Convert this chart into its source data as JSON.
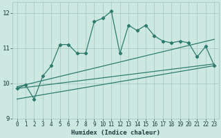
{
  "xlabel": "Humidex (Indice chaleur)",
  "bg_color": "#cce8e0",
  "grid_color": "#aaccc4",
  "line_color": "#2e7b6e",
  "xlim": [
    -0.5,
    23.5
  ],
  "ylim": [
    9.0,
    12.3
  ],
  "yticks": [
    9,
    10,
    11,
    12
  ],
  "xticks": [
    0,
    1,
    2,
    3,
    4,
    5,
    6,
    7,
    8,
    9,
    10,
    11,
    12,
    13,
    14,
    15,
    16,
    17,
    18,
    19,
    20,
    21,
    22,
    23
  ],
  "main_line_x": [
    0,
    1,
    2,
    3,
    4,
    5,
    6,
    7,
    8,
    9,
    10,
    11,
    12,
    13,
    14,
    15,
    16,
    17,
    18,
    19,
    20,
    21,
    22,
    23
  ],
  "main_line_y": [
    9.85,
    9.95,
    9.55,
    10.2,
    10.5,
    11.1,
    11.1,
    10.85,
    10.85,
    11.75,
    11.85,
    12.05,
    10.85,
    11.65,
    11.5,
    11.65,
    11.35,
    11.2,
    11.15,
    11.2,
    11.15,
    10.75,
    11.05,
    10.5
  ],
  "reg_line1_x": [
    0,
    23
  ],
  "reg_line1_y": [
    9.85,
    10.55
  ],
  "reg_line2_x": [
    0,
    23
  ],
  "reg_line2_y": [
    9.9,
    11.25
  ],
  "reg_line3_x": [
    0,
    23
  ],
  "reg_line3_y": [
    9.55,
    10.5
  ],
  "line_width": 0.9,
  "tick_fontsize": 6.5
}
